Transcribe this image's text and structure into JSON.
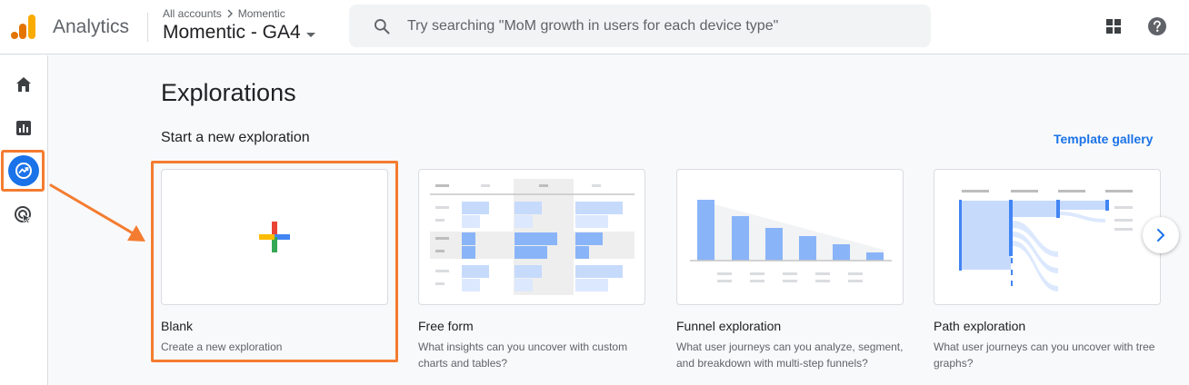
{
  "header": {
    "app_name": "Analytics",
    "breadcrumb": {
      "all_accounts": "All accounts",
      "account": "Momentic"
    },
    "property": "Momentic - GA4",
    "search_placeholder": "Try searching \"MoM growth in users for each device type\""
  },
  "sidebar": {
    "items": [
      {
        "icon": "home-icon"
      },
      {
        "icon": "reports-icon"
      },
      {
        "icon": "explore-icon",
        "active": true
      },
      {
        "icon": "advertising-icon"
      }
    ]
  },
  "main": {
    "title": "Explorations",
    "subtitle": "Start a new exploration",
    "gallery_link": "Template gallery",
    "cards": [
      {
        "title": "Blank",
        "description": "Create a new exploration",
        "highlighted": true
      },
      {
        "title": "Free form",
        "description": "What insights can you uncover with custom charts and tables?"
      },
      {
        "title": "Funnel exploration",
        "description": "What user journeys can you analyze, segment, and breakdown with multi-step funnels?"
      },
      {
        "title": "Path exploration",
        "description": "What user journeys can you uncover with tree graphs?"
      }
    ]
  },
  "colors": {
    "accent": "#1a73e8",
    "annotation": "#f47c30",
    "chart_bar": "#8ab4f8"
  }
}
